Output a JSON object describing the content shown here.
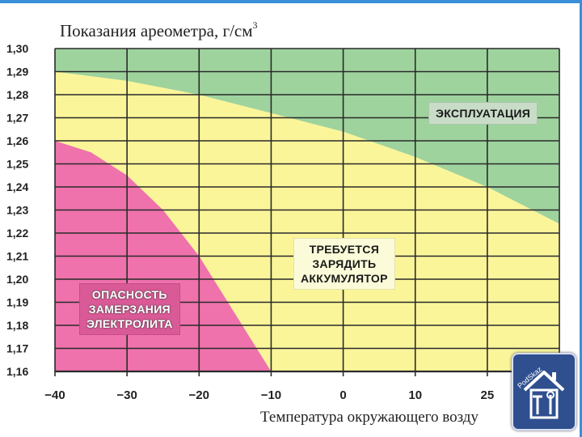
{
  "chart_data": {
    "type": "area",
    "title_text": "Показания ареометра, г/см",
    "title_sup": "3",
    "xlabel": "Температура окружающего возду",
    "x_ticks": [
      "−40",
      "−30",
      "−20",
      "−10",
      "0",
      "10",
      "25"
    ],
    "x_values": [
      -40,
      -30,
      -20,
      -10,
      0,
      10,
      20,
      30
    ],
    "y_ticks": [
      "1,30",
      "1,29",
      "1,28",
      "1,27",
      "1,26",
      "1,25",
      "1,24",
      "1,23",
      "1,22",
      "1,21",
      "1,20",
      "1,19",
      "1,18",
      "1,17",
      "1,16"
    ],
    "xlim": [
      -40,
      30
    ],
    "ylim": [
      1.16,
      1.3
    ],
    "grid": true,
    "zones": [
      {
        "name": "ЭКСПЛУАТАЦИЯ",
        "color": "#9fd39e",
        "boundary_x": [
          -40,
          -30,
          -20,
          -10,
          0,
          10,
          20,
          30
        ],
        "boundary_y": [
          1.29,
          1.286,
          1.28,
          1.272,
          1.264,
          1.253,
          1.24,
          1.224
        ]
      },
      {
        "name": "ТРЕБУЕТСЯ\nЗАРЯДИТЬ\nАККУМУЛЯТОР",
        "color": "#fbf59a"
      },
      {
        "name": "ОПАСНОСТЬ\nЗАМЕРЗАНИЯ\nЭЛЕКТРОЛИТА",
        "color": "#ef72ac",
        "boundary_x": [
          -40,
          -35,
          -30,
          -25,
          -20,
          -15,
          -10
        ],
        "boundary_y": [
          1.26,
          1.255,
          1.245,
          1.23,
          1.21,
          1.185,
          1.16
        ]
      }
    ]
  },
  "badge": {
    "text": "PodSkaz"
  },
  "colors": {
    "background": "#ffffff",
    "plot_bg": "#fbf59a",
    "grid": "#2a2a2a",
    "accent_rule": "#3a8fd8",
    "green_zone": "#9fd39e",
    "yellow_zone": "#fbf59a",
    "pink_zone": "#ef72ac"
  }
}
